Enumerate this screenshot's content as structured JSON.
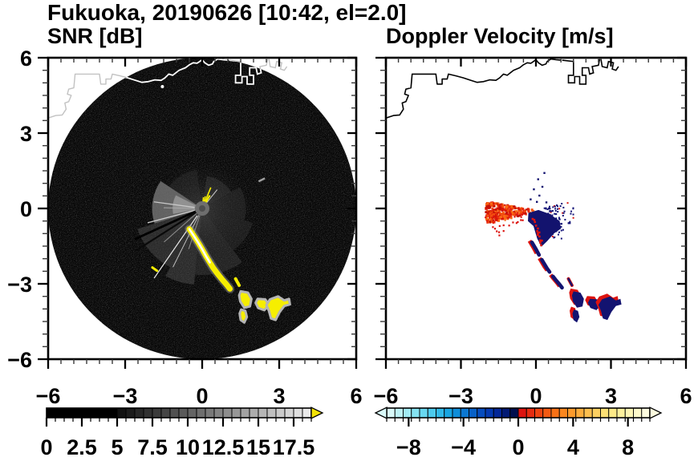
{
  "title": "Fukuoka, 20190626 [10:42, el=2.0]",
  "panels": [
    {
      "subtitle": "SNR [dB]"
    },
    {
      "subtitle": "Doppler Velocity [m/s]"
    }
  ],
  "chart_data": {
    "type": "heatmap",
    "subtype": "radar-ppi-pair",
    "station": "Fukuoka",
    "date": "20190626",
    "time": "10:42",
    "elevation_deg": 2.0,
    "axes": {
      "xlim": [
        -6,
        6
      ],
      "ylim": [
        -6,
        6
      ],
      "major_ticks": [
        -6,
        -3,
        0,
        3,
        6
      ],
      "minor_step": 0.5,
      "x_tick_labels": [
        "−6",
        "−3",
        "0",
        "3",
        "6"
      ],
      "y_tick_labels": [
        "6",
        "3",
        "0",
        "−3",
        "−6"
      ]
    },
    "coastline": {
      "main": [
        [
          -6.0,
          3.6
        ],
        [
          -5.7,
          3.7
        ],
        [
          -5.45,
          3.72
        ],
        [
          -5.3,
          3.95
        ],
        [
          -5.35,
          4.2
        ],
        [
          -5.2,
          4.25
        ],
        [
          -5.1,
          4.5
        ],
        [
          -5.25,
          4.55
        ],
        [
          -5.2,
          4.75
        ],
        [
          -5.0,
          4.8
        ],
        [
          -4.95,
          5.35
        ],
        [
          -4.0,
          5.35
        ],
        [
          -3.95,
          4.95
        ],
        [
          -3.75,
          4.95
        ],
        [
          -3.75,
          5.15
        ],
        [
          -3.55,
          5.15
        ],
        [
          -3.5,
          5.35
        ],
        [
          -3.2,
          5.28
        ],
        [
          -2.9,
          5.2
        ],
        [
          -2.6,
          5.1
        ],
        [
          -2.35,
          5.02
        ],
        [
          -2.1,
          5.05
        ],
        [
          -1.85,
          5.12
        ],
        [
          -1.6,
          5.1
        ],
        [
          -1.45,
          5.2
        ],
        [
          -1.3,
          5.35
        ],
        [
          -1.15,
          5.3
        ],
        [
          -0.9,
          5.5
        ],
        [
          -0.65,
          5.6
        ],
        [
          -0.5,
          5.72
        ],
        [
          -0.35,
          5.8
        ],
        [
          -0.2,
          5.78
        ],
        [
          -0.1,
          5.85
        ],
        [
          0.0,
          5.92
        ],
        [
          0.1,
          5.8
        ],
        [
          0.25,
          5.7
        ],
        [
          0.4,
          5.75
        ],
        [
          0.45,
          5.85
        ],
        [
          0.6,
          5.95
        ],
        [
          0.8,
          5.92
        ],
        [
          1.0,
          5.9
        ]
      ],
      "piers": [
        [
          [
            1.05,
            5.9
          ],
          [
            1.5,
            5.85
          ],
          [
            1.5,
            5.3
          ],
          [
            1.3,
            5.3
          ],
          [
            1.3,
            5.0
          ],
          [
            1.55,
            5.0
          ],
          [
            1.55,
            5.25
          ],
          [
            1.75,
            5.25
          ],
          [
            1.75,
            4.95
          ],
          [
            2.0,
            4.95
          ],
          [
            2.0,
            5.3
          ],
          [
            1.85,
            5.3
          ],
          [
            1.85,
            5.6
          ],
          [
            2.1,
            5.6
          ],
          [
            2.15,
            5.35
          ],
          [
            2.3,
            5.4
          ],
          [
            2.25,
            5.65
          ],
          [
            2.5,
            5.7
          ],
          [
            2.55,
            5.95
          ]
        ],
        [
          [
            2.6,
            5.95
          ],
          [
            2.65,
            5.65
          ],
          [
            2.85,
            5.6
          ],
          [
            2.9,
            5.85
          ],
          [
            3.1,
            5.8
          ],
          [
            3.05,
            5.55
          ],
          [
            3.2,
            5.5
          ],
          [
            3.3,
            5.65
          ]
        ]
      ]
    },
    "echo_track": {
      "snake": [
        [
          -0.5,
          -0.82
        ],
        [
          -0.33,
          -1.08
        ],
        [
          -0.16,
          -1.35
        ],
        [
          0.0,
          -1.62
        ],
        [
          0.15,
          -1.9
        ],
        [
          0.3,
          -2.15
        ],
        [
          0.44,
          -2.38
        ],
        [
          0.6,
          -2.6
        ],
        [
          0.78,
          -2.83
        ],
        [
          0.94,
          -3.02
        ],
        [
          1.08,
          -3.2
        ]
      ],
      "dash": [
        [
          1.3,
          -2.8
        ],
        [
          1.44,
          -3.06
        ]
      ],
      "blobs": [
        [
          [
            1.5,
            -3.3
          ],
          [
            1.78,
            -3.35
          ],
          [
            1.92,
            -3.6
          ],
          [
            1.86,
            -3.9
          ],
          [
            1.64,
            -3.95
          ],
          [
            1.48,
            -3.7
          ],
          [
            1.44,
            -3.46
          ]
        ],
        [
          [
            2.16,
            -3.6
          ],
          [
            2.46,
            -3.62
          ],
          [
            2.6,
            -3.85
          ],
          [
            2.42,
            -4.05
          ],
          [
            2.18,
            -3.96
          ],
          [
            2.08,
            -3.76
          ]
        ],
        [
          [
            2.64,
            -3.62
          ],
          [
            2.96,
            -3.5
          ],
          [
            3.2,
            -3.66
          ],
          [
            3.38,
            -3.6
          ],
          [
            3.42,
            -3.82
          ],
          [
            3.2,
            -3.88
          ],
          [
            3.02,
            -4.12
          ],
          [
            2.86,
            -4.44
          ],
          [
            2.68,
            -4.38
          ],
          [
            2.6,
            -4.08
          ],
          [
            2.5,
            -3.84
          ]
        ],
        [
          [
            1.52,
            -4.02
          ],
          [
            1.68,
            -4.08
          ],
          [
            1.74,
            -4.32
          ],
          [
            1.64,
            -4.54
          ],
          [
            1.5,
            -4.44
          ],
          [
            1.46,
            -4.18
          ]
        ]
      ]
    },
    "snr": {
      "title": "SNR [dB]",
      "disk": {
        "center": [
          0,
          0
        ],
        "radius_km": 6,
        "color": "#060606"
      },
      "colorbar": {
        "range": [
          0,
          18.75
        ],
        "cells": 30,
        "major_values": [
          0,
          2.5,
          5,
          7.5,
          10,
          12.5,
          15,
          17.5
        ],
        "labels": [
          "0",
          "2.5",
          "5",
          "7.5",
          "10",
          "12.5",
          "15",
          "17.5"
        ],
        "overflow_arrow_color": "#f2e205",
        "colors": [
          "#000000",
          "#000000",
          "#000000",
          "#000000",
          "#000000",
          "#000000",
          "#000000",
          "#000000",
          "#121212",
          "#1c1c1c",
          "#272727",
          "#313131",
          "#3b3b3b",
          "#454545",
          "#505050",
          "#5a5a5a",
          "#646464",
          "#6e6e6e",
          "#797979",
          "#838383",
          "#8d8d8d",
          "#979797",
          "#a2a2a2",
          "#acacac",
          "#b6b6b6",
          "#c0c0c0",
          "#cbcbcb",
          "#d5d5d5",
          "#dfdfdf",
          "#eaeaea"
        ]
      },
      "wedges": [
        {
          "a": [
            146,
            198
          ],
          "r": 1.95,
          "c": "#7d7d7d",
          "o": 0.75
        },
        {
          "a": [
            153,
            191
          ],
          "r": 1.15,
          "c": "#999999",
          "o": 0.85
        },
        {
          "a": [
            198,
            242
          ],
          "r": 2.65,
          "c": "#4e4e4e",
          "o": 0.5
        },
        {
          "a": [
            242,
            264
          ],
          "r": 3.05,
          "c": "#575757",
          "o": 0.45
        },
        {
          "a": [
            264,
            306
          ],
          "r": 2.65,
          "c": "#424242",
          "o": 0.45
        },
        {
          "a": [
            306,
            344
          ],
          "r": 2.05,
          "c": "#3a3a3a",
          "o": 0.4
        },
        {
          "a": [
            344,
            390
          ],
          "r": 1.7,
          "c": "#353535",
          "o": 0.45
        },
        {
          "a": [
            30,
            82
          ],
          "r": 1.3,
          "c": "#3d3d3d",
          "o": 0.45
        },
        {
          "a": [
            98,
            146
          ],
          "r": 1.55,
          "c": "#343434",
          "o": 0.4
        }
      ],
      "rays": [
        {
          "a": 172,
          "r": [
            0.3,
            1.9
          ],
          "c": "#c8c8c8",
          "w": 1.3
        },
        {
          "a": 179,
          "r": [
            0.3,
            1.5
          ],
          "c": "#a8a8a8",
          "w": 1
        },
        {
          "a": 195,
          "r": [
            0.25,
            2.2
          ],
          "c": "#d0d0d0",
          "w": 1.3
        },
        {
          "a": 205,
          "r": [
            0.2,
            2.9
          ],
          "c": "#000000",
          "w": 2.8
        },
        {
          "a": 213,
          "r": [
            0.2,
            3.1
          ],
          "c": "#0a0a0a",
          "w": 2.2
        },
        {
          "a": 222,
          "r": [
            0.3,
            2.0
          ],
          "c": "#909090",
          "w": 1
        },
        {
          "a": 236,
          "r": [
            0.35,
            3.35
          ],
          "c": "#e8e8e8",
          "w": 1.2
        },
        {
          "a": 244,
          "r": [
            0.3,
            2.6
          ],
          "c": "#bdbdbd",
          "w": 1
        },
        {
          "a": 252,
          "r": [
            0.3,
            1.7
          ],
          "c": "#8a8a8a",
          "w": 1
        },
        {
          "a": 52,
          "r": [
            0.3,
            0.95
          ],
          "c": "#cfcfcf",
          "w": 1
        }
      ],
      "yellow_streaks": [
        {
          "a": 60,
          "r": [
            0.22,
            0.6
          ],
          "w": 2.2
        },
        {
          "a": 68,
          "r": [
            0.3,
            0.9
          ],
          "w": 1.6
        },
        {
          "a": 76,
          "r": [
            0.2,
            0.5
          ],
          "w": 1.6
        },
        {
          "a": 84,
          "r": [
            0.25,
            0.45
          ],
          "w": 1.4
        }
      ],
      "yellow": "#f6ee00",
      "halo": "#9a9a9a",
      "extra_dash": [
        [
          -1.94,
          -2.35
        ],
        [
          -1.76,
          -2.48
        ]
      ],
      "clutter_dash": [
        [
          2.2,
          1.08
        ],
        [
          2.44,
          1.2
        ]
      ],
      "white_dot": [
        -1.55,
        4.85
      ]
    },
    "velocity": {
      "title": "Doppler Velocity [m/s]",
      "colorbar": {
        "range": [
          -9.6,
          9.6
        ],
        "cells": 32,
        "major_values": [
          -8,
          -4,
          0,
          4,
          8
        ],
        "labels": [
          "−8",
          "−4",
          "0",
          "4",
          "8"
        ],
        "colors": [
          "#d9f9f9",
          "#bdf2f6",
          "#a1ebf4",
          "#85e3f2",
          "#68d8f0",
          "#4ccaed",
          "#30b8e8",
          "#18a5e2",
          "#0f8eda",
          "#0b77d1",
          "#0861c8",
          "#064cbe",
          "#0439b0",
          "#032798",
          "#021a74",
          "#010f4e",
          "#dd1410",
          "#e62c10",
          "#ee4310",
          "#f45a12",
          "#f87116",
          "#fa861e",
          "#fc9a2c",
          "#fdad3d",
          "#fdbf4f",
          "#fdd061",
          "#fde074",
          "#feea88",
          "#fef19d",
          "#fef5b4",
          "#fef9ca",
          "#fefcdf"
        ]
      },
      "approach_wedge": {
        "tip": [
          0.1,
          -0.05
        ],
        "angles": [
          170,
          194
        ],
        "r": [
          0.15,
          2.15
        ],
        "count": 280,
        "colors": [
          "#e82810",
          "#f34f0e",
          "#d91408",
          "#fa6a14",
          "#c41006"
        ]
      },
      "cluster": {
        "poly": [
          [
            -0.3,
            -0.18
          ],
          [
            0.1,
            -0.06
          ],
          [
            0.55,
            -0.22
          ],
          [
            0.95,
            -0.5
          ],
          [
            1.0,
            -0.8
          ],
          [
            0.72,
            -1.0
          ],
          [
            0.45,
            -1.3
          ],
          [
            0.22,
            -1.52
          ],
          [
            0.05,
            -1.2
          ],
          [
            -0.1,
            -0.7
          ],
          [
            -0.32,
            -0.5
          ]
        ],
        "color": "#13136e"
      },
      "spray": {
        "angles": [
          -58,
          -47,
          -38,
          -30,
          -22,
          -14,
          -6,
          2,
          10
        ],
        "r": [
          0.3,
          1.55
        ],
        "navy": "#141478",
        "red": "#d81810"
      },
      "west_dots": {
        "angles": [
          188,
          218
        ],
        "r": [
          0.6,
          2.1
        ],
        "count": 24
      },
      "top_dots": [
        [
          0.0,
          0.3
        ],
        [
          0.1,
          0.55
        ],
        [
          0.22,
          0.9
        ],
        [
          0.05,
          1.2
        ],
        [
          0.3,
          1.45
        ],
        [
          -0.12,
          0.8
        ],
        [
          -0.25,
          0.4
        ],
        [
          0.38,
          0.28
        ]
      ],
      "navy": "#131370",
      "red": "#dc1410"
    }
  }
}
